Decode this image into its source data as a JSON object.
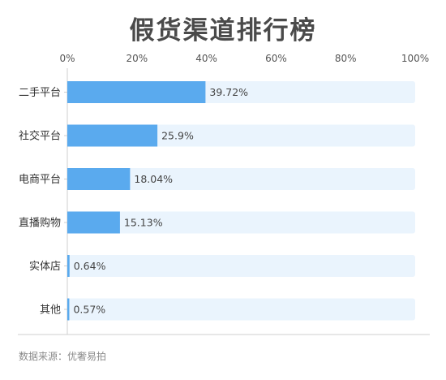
{
  "title": "假货渠道排行榜",
  "source": "数据来源：优奢易拍",
  "colors": {
    "bar": "#5aaaee",
    "track": "#eaf4fd",
    "tick": "#555555",
    "axis": "#cfcfcf"
  },
  "chart_data": {
    "type": "bar",
    "orientation": "horizontal",
    "categories": [
      "二手平台",
      "社交平台",
      "电商平台",
      "直播购物",
      "实体店",
      "其他"
    ],
    "values": [
      39.72,
      25.9,
      18.04,
      15.13,
      0.64,
      0.57
    ],
    "value_labels": [
      "39.72%",
      "25.9%",
      "18.04%",
      "15.13%",
      "0.64%",
      "0.57%"
    ],
    "xticks": [
      "0%",
      "20%",
      "40%",
      "60%",
      "80%",
      "100%"
    ],
    "xlim": [
      0,
      100
    ],
    "x_axis_position": "top",
    "grid": false
  }
}
